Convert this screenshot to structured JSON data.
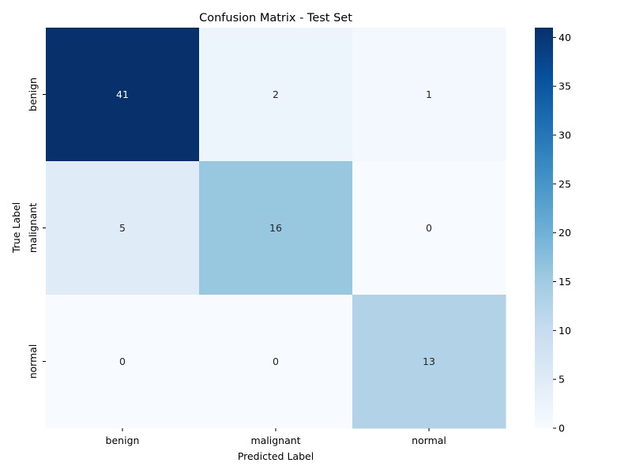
{
  "chart_data": {
    "type": "heatmap",
    "title": "Confusion Matrix - Test Set",
    "xlabel": "Predicted Label",
    "ylabel": "True Label",
    "x_categories": [
      "benign",
      "malignant",
      "normal"
    ],
    "y_categories": [
      "benign",
      "malignant",
      "normal"
    ],
    "values": [
      [
        41,
        2,
        1
      ],
      [
        5,
        16,
        0
      ],
      [
        0,
        0,
        13
      ]
    ],
    "colormap": "Blues",
    "colorbar": {
      "range": [
        0,
        41
      ],
      "ticks": [
        0,
        5,
        10,
        15,
        20,
        25,
        30,
        35,
        40
      ]
    },
    "annotations": true,
    "grid": false
  }
}
